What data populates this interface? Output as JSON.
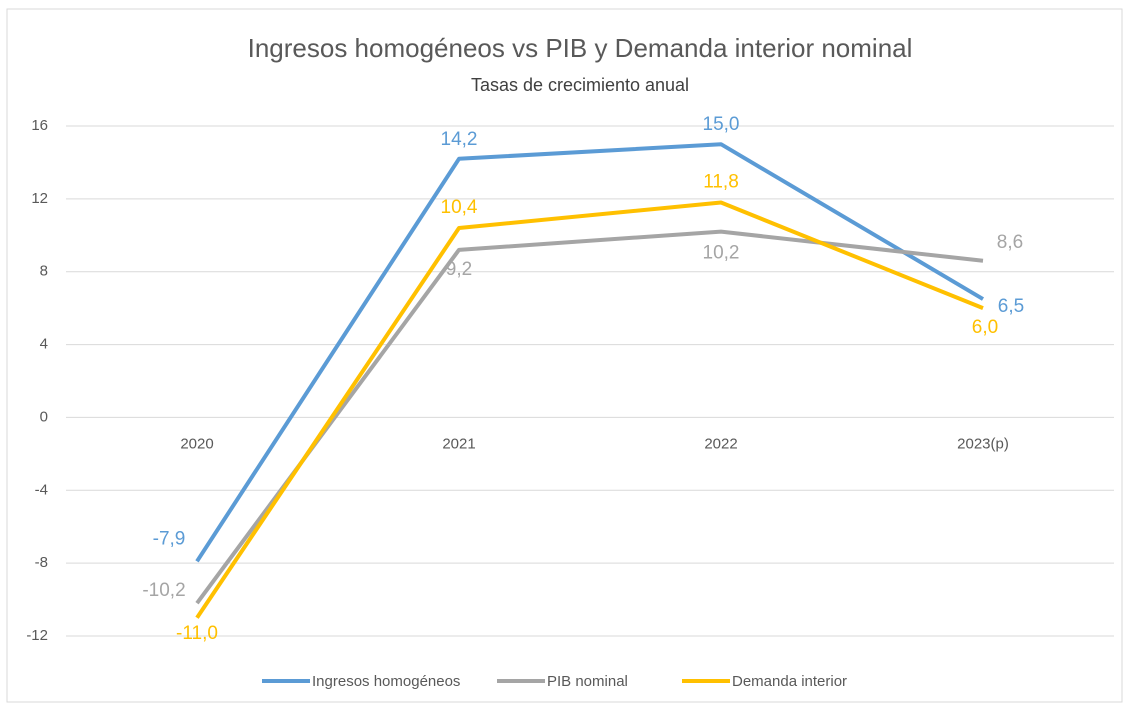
{
  "chart_data": {
    "type": "line",
    "title": "Ingresos homogéneos vs PIB y Demanda interior nominal",
    "subtitle": "Tasas de crecimiento anual",
    "categories": [
      "2020",
      "2021",
      "2022",
      "2023(p)"
    ],
    "series": [
      {
        "name": "Ingresos homogéneos",
        "color": "#5b9bd5",
        "values": [
          -7.9,
          14.2,
          15.0,
          6.5
        ],
        "value_labels": [
          "-7,9",
          "14,2",
          "15,0",
          "6,5"
        ]
      },
      {
        "name": "PIB nominal",
        "color": "#a5a5a5",
        "values": [
          -10.2,
          9.2,
          10.2,
          8.6
        ],
        "value_labels": [
          "-10,2",
          "9,2",
          "10,2",
          "8,6"
        ]
      },
      {
        "name": "Demanda interior",
        "color": "#ffc000",
        "values": [
          -11.0,
          10.4,
          11.8,
          6.0
        ],
        "value_labels": [
          "-11,0",
          "10,4",
          "11,8",
          "6,0"
        ]
      }
    ],
    "ylim": [
      -12,
      16
    ],
    "yticks": [
      -12,
      -8,
      -4,
      0,
      4,
      8,
      12,
      16
    ],
    "grid": true,
    "legend": "bottom"
  }
}
